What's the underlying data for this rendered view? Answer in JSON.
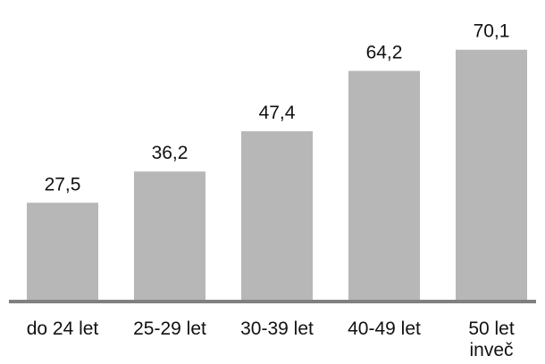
{
  "chart_data": {
    "type": "bar",
    "title": "",
    "xlabel": "",
    "ylabel": "",
    "categories": [
      [
        "do 24 let"
      ],
      [
        "25-29 let"
      ],
      [
        "30-39 let"
      ],
      [
        "40-49 let"
      ],
      [
        "50 let",
        "inveč"
      ]
    ],
    "values": [
      27.5,
      36.2,
      47.4,
      64.2,
      70.1
    ],
    "data_labels": [
      "27,5",
      "36,2",
      "47,4",
      "64,2",
      "70,1"
    ],
    "ylim": [
      0,
      75
    ],
    "grid": false,
    "legend": "none",
    "colors": {
      "bar": "#b7b7b7",
      "axis": "#808080",
      "text": "#111111"
    }
  }
}
